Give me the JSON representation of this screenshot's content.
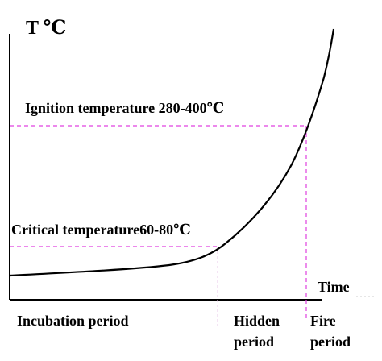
{
  "diagram": {
    "y_axis_label": "T ℃",
    "x_axis_label": "Time",
    "ignition_label": "Ignition temperature 280-400℃",
    "critical_label": "Critical temperature60-80℃",
    "periods": {
      "incubation": "Incubation period",
      "hidden_line1": "Hidden",
      "hidden_line2": "period",
      "fire_line1": "Fire",
      "fire_line2": "period"
    },
    "colors": {
      "curve": "#000000",
      "axis": "#000000",
      "guide": "#e040e0"
    }
  }
}
